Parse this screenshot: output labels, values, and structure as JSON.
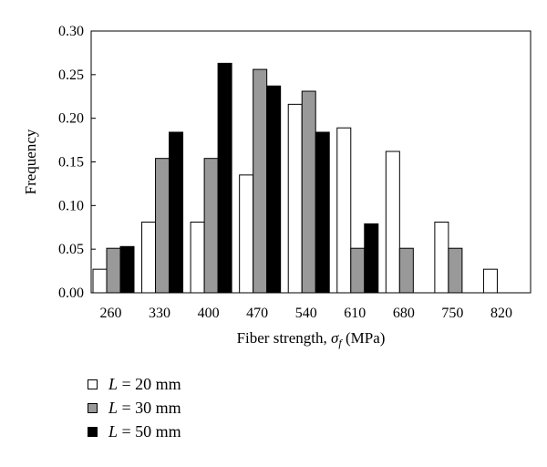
{
  "chart_data": {
    "type": "bar",
    "title": "",
    "xlabel": "Fiber strength, σ_f (MPa)",
    "xlabel_parts": {
      "main": "Fiber strength, ",
      "symbol": "σ",
      "subscript": "f",
      "unit": " (MPa)"
    },
    "ylabel": "Frequency",
    "categories": [
      "260",
      "330",
      "400",
      "470",
      "540",
      "610",
      "680",
      "750",
      "820"
    ],
    "yticks": [
      "0.00",
      "0.05",
      "0.10",
      "0.15",
      "0.20",
      "0.25",
      "0.30"
    ],
    "ylim": [
      0,
      0.3
    ],
    "grid": false,
    "legend_position": "bottom-left",
    "series": [
      {
        "name": "L = 20 mm",
        "color": "#ffffff",
        "values": [
          0.027,
          0.081,
          0.081,
          0.135,
          0.216,
          0.189,
          0.162,
          0.081,
          0.027
        ]
      },
      {
        "name": "L = 30 mm",
        "color": "#999999",
        "values": [
          0.051,
          0.154,
          0.154,
          0.256,
          0.231,
          0.051,
          0.051,
          0.051,
          0.0
        ]
      },
      {
        "name": "L = 50 mm",
        "color": "#000000",
        "values": [
          0.053,
          0.184,
          0.263,
          0.237,
          0.184,
          0.079,
          0.0,
          0.0,
          0.0
        ]
      }
    ]
  },
  "legend": {
    "items": [
      {
        "var": "L",
        "rest": " = 20 mm"
      },
      {
        "var": "L",
        "rest": " = 30 mm"
      },
      {
        "var": "L",
        "rest": " = 50 mm"
      }
    ]
  }
}
